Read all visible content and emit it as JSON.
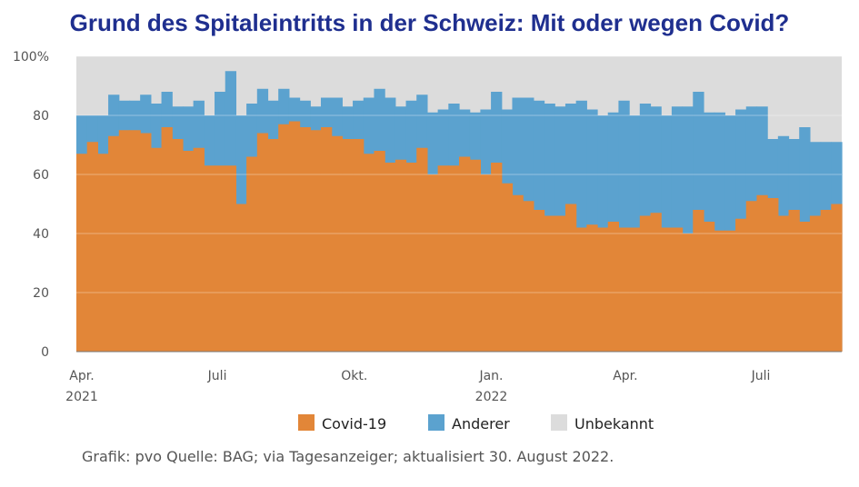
{
  "title": "Grund des Spitaleintritts in der Schweiz: Mit oder wegen Covid?",
  "source": "Grafik: pvo Quelle: BAG; via Tagesanzeiger; aktualisiert 30. August 2022.",
  "colors": {
    "covid": "#e28638",
    "anderer": "#5ba2cf",
    "unbekannt": "#dcdcdc",
    "title": "#1f2f8f"
  },
  "chart_data": {
    "type": "area",
    "title": "Grund des Spitaleintritts in der Schweiz: Mit oder wegen Covid?",
    "x_start": "2021-04-01",
    "x_end": "2022-08-28",
    "ylim": [
      0,
      100
    ],
    "yticks": [
      "0",
      "20",
      "40",
      "60",
      "80",
      "100%"
    ],
    "xticks": [
      {
        "label": "Apr.",
        "sub": "2021"
      },
      {
        "label": "Juli",
        "sub": ""
      },
      {
        "label": "Okt.",
        "sub": ""
      },
      {
        "label": "Jan.",
        "sub": "2022"
      },
      {
        "label": "Apr.",
        "sub": ""
      },
      {
        "label": "Juli",
        "sub": ""
      }
    ],
    "legend": [
      "Covid-19",
      "Anderer",
      "Unbekannt"
    ],
    "legend_position": "bottom",
    "grid": true,
    "series": [
      {
        "name": "Covid-19",
        "values": [
          67,
          71,
          67,
          73,
          75,
          75,
          74,
          69,
          76,
          72,
          68,
          69,
          63,
          63,
          63,
          50,
          66,
          74,
          72,
          77,
          78,
          76,
          75,
          76,
          73,
          72,
          72,
          67,
          68,
          64,
          65,
          64,
          69,
          60,
          63,
          63,
          66,
          65,
          60,
          64,
          57,
          53,
          51,
          48,
          46,
          46,
          50,
          42,
          43,
          42,
          44,
          42,
          42,
          46,
          47,
          42,
          42,
          40,
          48,
          44,
          41,
          41,
          45,
          51,
          53,
          52,
          46,
          48,
          44,
          46,
          48,
          50
        ]
      },
      {
        "name": "Anderer",
        "values": [
          80,
          80,
          80,
          87,
          85,
          85,
          87,
          84,
          88,
          83,
          83,
          85,
          80,
          88,
          95,
          80,
          84,
          89,
          85,
          89,
          86,
          85,
          83,
          86,
          86,
          83,
          85,
          86,
          89,
          86,
          83,
          85,
          87,
          81,
          82,
          84,
          82,
          81,
          82,
          88,
          82,
          86,
          86,
          85,
          84,
          83,
          84,
          85,
          82,
          80,
          81,
          85,
          80,
          84,
          83,
          80,
          83,
          83,
          88,
          81,
          81,
          80,
          82,
          83,
          83,
          72,
          73,
          72,
          76,
          71,
          71,
          71
        ]
      }
    ]
  }
}
